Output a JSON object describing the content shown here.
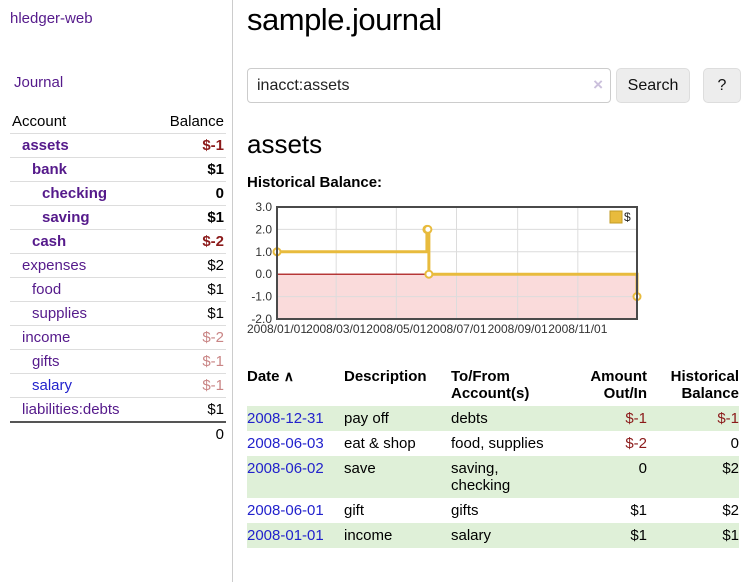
{
  "sidebar": {
    "brand": "hledger-web",
    "nav": {
      "journal": "Journal"
    },
    "accounts_table": {
      "headers": {
        "account": "Account",
        "balance": "Balance"
      },
      "rows": [
        {
          "name": "assets",
          "balance": "$-1",
          "indent": 1,
          "bold": true,
          "balance_color": "dark-red"
        },
        {
          "name": "bank",
          "balance": "$1",
          "indent": 2,
          "bold": true,
          "balance_color": "black"
        },
        {
          "name": "checking",
          "balance": "0",
          "indent": 3,
          "bold": true,
          "balance_color": "black"
        },
        {
          "name": "saving",
          "balance": "$1",
          "indent": 3,
          "bold": true,
          "balance_color": "black"
        },
        {
          "name": "cash",
          "balance": "$-2",
          "indent": 2,
          "bold": true,
          "balance_color": "dark-red"
        },
        {
          "name": "expenses",
          "balance": "$2",
          "indent": 1,
          "bold": false,
          "balance_color": "black"
        },
        {
          "name": "food",
          "balance": "$1",
          "indent": 2,
          "bold": false,
          "balance_color": "black"
        },
        {
          "name": "supplies",
          "balance": "$1",
          "indent": 2,
          "bold": false,
          "balance_color": "black"
        },
        {
          "name": "income",
          "balance": "$-2",
          "indent": 1,
          "bold": false,
          "balance_color": "muted-rose"
        },
        {
          "name": "gifts",
          "balance": "$-1",
          "indent": 2,
          "bold": false,
          "balance_color": "muted-rose"
        },
        {
          "name": "salary",
          "balance": "$-1",
          "indent": 2,
          "bold": false,
          "balance_color": "muted-rose",
          "link_color": "blue"
        },
        {
          "name": "liabilities:debts",
          "balance": "$1",
          "indent": 1,
          "bold": false,
          "balance_color": "black"
        }
      ],
      "total": "0"
    }
  },
  "header": {
    "title": "sample.journal"
  },
  "search": {
    "query": "inacct:assets",
    "clear_icon": "×",
    "button_label": "Search",
    "help_label": "?"
  },
  "main": {
    "account_heading": "assets",
    "chart_label": "Historical Balance:"
  },
  "chart_data": {
    "type": "step-line",
    "title": "Historical Balance:",
    "series": [
      {
        "name": "$",
        "color": "#E8BB3D",
        "points": [
          {
            "date": "2008-01-01",
            "value": 1
          },
          {
            "date": "2008-06-01",
            "value": 2
          },
          {
            "date": "2008-06-02",
            "value": 2
          },
          {
            "date": "2008-06-03",
            "value": 0
          },
          {
            "date": "2008-12-31",
            "value": -1
          }
        ]
      }
    ],
    "x_range": [
      "2008-01-01",
      "2008-12-31"
    ],
    "ylim": [
      -2,
      3
    ],
    "yticks": [
      {
        "value": 3,
        "label": "3.0"
      },
      {
        "value": 2,
        "label": "2.0"
      },
      {
        "value": 1,
        "label": "1.0"
      },
      {
        "value": 0,
        "label": "0.0"
      },
      {
        "value": -1,
        "label": "-1.0"
      },
      {
        "value": -2,
        "label": "-2.0"
      }
    ],
    "xticks": [
      {
        "date": "2008-01-01",
        "label": "2008/01/01"
      },
      {
        "date": "2008-03-01",
        "label": "2008/03/01"
      },
      {
        "date": "2008-05-01",
        "label": "2008/05/01"
      },
      {
        "date": "2008-07-01",
        "label": "2008/07/01"
      },
      {
        "date": "2008-09-01",
        "label": "2008/09/01"
      },
      {
        "date": "2008-11-01",
        "label": "2008/11/01"
      }
    ],
    "grid": true,
    "negative_region_color": "#FADBDB",
    "zero_line_color": "#A00000",
    "legend": {
      "position": "top-right",
      "label": "$"
    }
  },
  "register": {
    "headers": {
      "date": "Date",
      "sort_icon": "∧",
      "description": "Description",
      "account": "To/From Account(s)",
      "amount": "Amount Out/In",
      "balance": "Historical Balance"
    },
    "rows": [
      {
        "date": "2008-12-31",
        "description": "pay off",
        "account": "debts",
        "amount": "$-1",
        "balance": "$-1"
      },
      {
        "date": "2008-06-03",
        "description": "eat & shop",
        "account": "food, supplies",
        "amount": "$-2",
        "balance": "0"
      },
      {
        "date": "2008-06-02",
        "description": "save",
        "account": "saving, checking",
        "amount": "0",
        "balance": "$2"
      },
      {
        "date": "2008-06-01",
        "description": "gift",
        "account": "gifts",
        "amount": "$1",
        "balance": "$2"
      },
      {
        "date": "2008-01-01",
        "description": "income",
        "account": "salary",
        "amount": "$1",
        "balance": "$1"
      }
    ]
  }
}
